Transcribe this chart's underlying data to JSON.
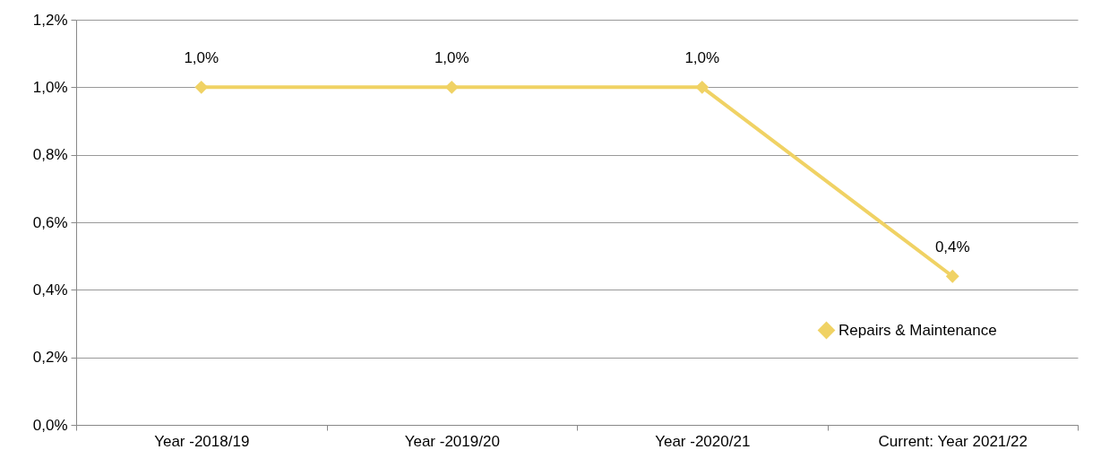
{
  "chart_data": {
    "type": "line",
    "categories": [
      "Year -2018/19",
      "Year -2019/20",
      "Year -2020/21",
      "Current: Year 2021/22"
    ],
    "series": [
      {
        "name": "Repairs & Maintenance",
        "color": "#f0d264",
        "values": [
          1.0,
          1.0,
          1.0,
          0.44
        ],
        "value_labels": [
          "1,0%",
          "1,0%",
          "1,0%",
          "0,4%"
        ]
      }
    ],
    "ylim": [
      0,
      1.2
    ],
    "yticks": [
      {
        "value": 0,
        "label": "0,0%"
      },
      {
        "value": 0.2,
        "label": "0,2%"
      },
      {
        "value": 0.4,
        "label": "0,4%"
      },
      {
        "value": 0.6,
        "label": "0,6%"
      },
      {
        "value": 0.8,
        "label": "0,8%"
      },
      {
        "value": 1.0,
        "label": "1,0%"
      },
      {
        "value": 1.2,
        "label": "1,2%"
      }
    ],
    "grid": "y",
    "legend": "bottom right",
    "marker": "diamond",
    "line_style": "solid"
  }
}
